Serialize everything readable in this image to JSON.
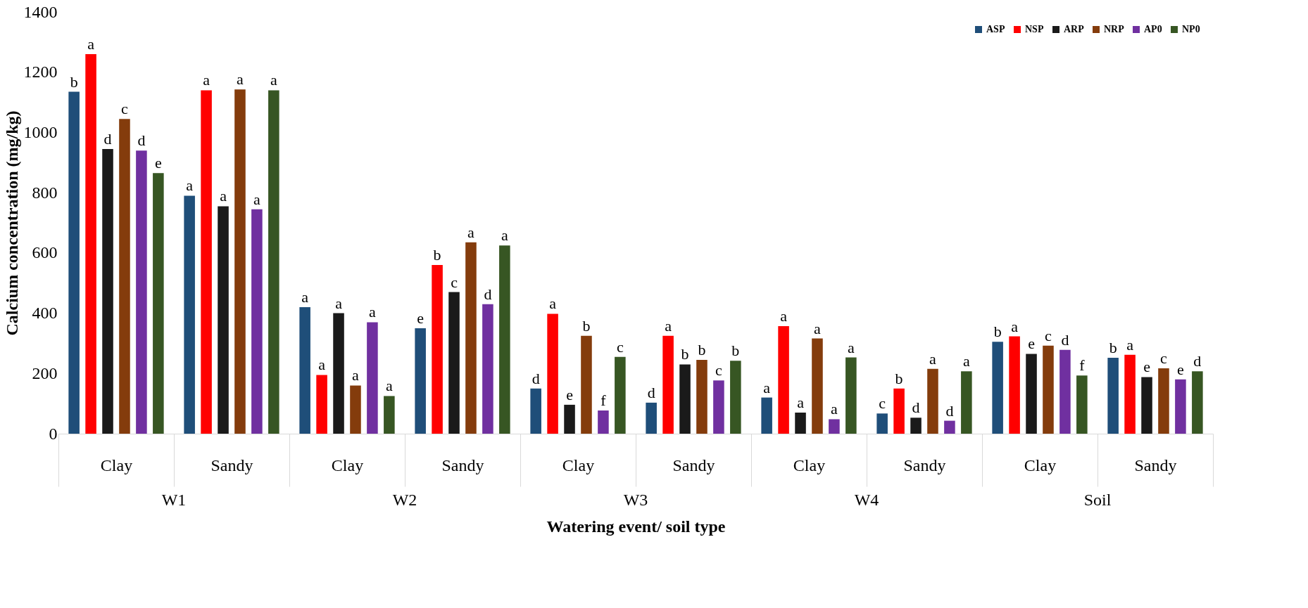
{
  "chart_data": {
    "type": "bar",
    "xlabel": "Watering event/ soil type",
    "ylabel": "Calcium concentration (mg/kg)",
    "categories": [
      "Clay",
      "Sandy",
      "Clay",
      "Sandy",
      "Clay",
      "Sandy",
      "Clay",
      "Sandy",
      "Clay",
      "Sandy"
    ],
    "annotations": [
      "W1",
      "W2",
      "W3",
      "W4",
      "Soil"
    ],
    "ylim": [
      0,
      1400
    ],
    "yticks": [
      0,
      200,
      400,
      600,
      800,
      1000,
      1200,
      1400
    ],
    "grid": false,
    "legend": "top right",
    "series": [
      {
        "name": "ASP",
        "color": "#1f4e79",
        "values": [
          1135,
          790,
          420,
          350,
          150,
          103,
          120,
          67,
          305,
          252
        ],
        "value_labels": [
          "b",
          "a",
          "a",
          "e",
          "d",
          "d",
          "a",
          "c",
          "b",
          "b"
        ]
      },
      {
        "name": "NSP",
        "color": "#ff0000",
        "values": [
          1260,
          1140,
          195,
          560,
          398,
          325,
          357,
          150,
          323,
          262
        ],
        "value_labels": [
          "a",
          "a",
          "a",
          "b",
          "a",
          "a",
          "a",
          "b",
          "a",
          "a"
        ]
      },
      {
        "name": "ARP",
        "color": "#1a1a1a",
        "values": [
          945,
          755,
          400,
          470,
          96,
          230,
          70,
          53,
          265,
          188
        ],
        "value_labels": [
          "d",
          "a",
          "a",
          "c",
          "e",
          "b",
          "a",
          "d",
          "e",
          "e"
        ]
      },
      {
        "name": "NRP",
        "color": "#843c0c",
        "values": [
          1045,
          1143,
          160,
          635,
          325,
          245,
          316,
          215,
          292,
          217
        ],
        "value_labels": [
          "c",
          "a",
          "a",
          "a",
          "b",
          "b",
          "a",
          "a",
          "c",
          "c"
        ]
      },
      {
        "name": "AP0",
        "color": "#7030a0",
        "values": [
          940,
          745,
          370,
          430,
          77,
          177,
          48,
          43,
          278,
          180
        ],
        "value_labels": [
          "d",
          "a",
          "a",
          "d",
          "f",
          "c",
          "a",
          "d",
          "d",
          "e"
        ]
      },
      {
        "name": "NP0",
        "color": "#375623",
        "values": [
          865,
          1140,
          125,
          625,
          255,
          242,
          253,
          207,
          193,
          207
        ],
        "value_labels": [
          "e",
          "a",
          "a",
          "a",
          "c",
          "b",
          "a",
          "a",
          "f",
          "d"
        ]
      }
    ]
  }
}
